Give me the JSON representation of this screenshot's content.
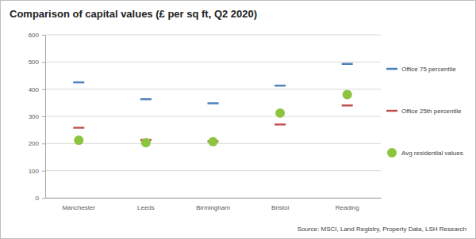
{
  "chart_data": {
    "type": "scatter",
    "title": "Comparison of capital values (£ per sq ft, Q2 2020)",
    "source": "Source: MSCI, Land Registry, Property Data, LSH Research",
    "categories": [
      "Manchester",
      "Leeds",
      "Birmingham",
      "Bristol",
      "Reading"
    ],
    "series": [
      {
        "name": "Office 75 percentile",
        "color": "#4f81bd",
        "marker": "dash",
        "values": [
          425,
          363,
          348,
          413,
          493
        ]
      },
      {
        "name": "Office 25th percentile",
        "color": "#c0504d",
        "marker": "dash",
        "values": [
          258,
          213,
          208,
          270,
          340
        ]
      },
      {
        "name": "Avg residential values",
        "color": "#8cc43f",
        "marker": "circle",
        "values": [
          212,
          203,
          207,
          312,
          380
        ]
      }
    ],
    "ylim": [
      0,
      600
    ],
    "yticks": [
      0,
      100,
      200,
      300,
      400,
      500,
      600
    ],
    "grid": true,
    "legend": "right"
  }
}
